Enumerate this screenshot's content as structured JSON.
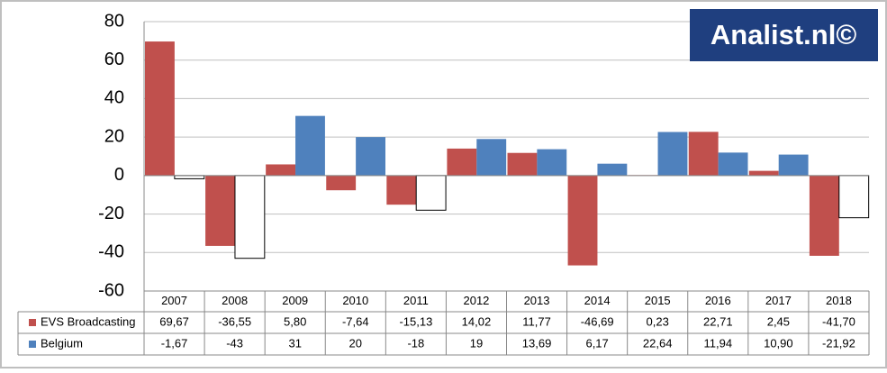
{
  "chart_data": {
    "type": "bar",
    "watermark": "Analist.nl©",
    "categories": [
      "2007",
      "2008",
      "2009",
      "2010",
      "2011",
      "2012",
      "2013",
      "2014",
      "2015",
      "2016",
      "2017",
      "2018"
    ],
    "series": [
      {
        "name": "EVS Broadcasting",
        "color": "#c0504d",
        "values": [
          69.67,
          -36.55,
          5.8,
          -7.64,
          -15.13,
          14.02,
          11.77,
          -46.69,
          0.23,
          22.71,
          2.45,
          -41.7
        ],
        "value_labels": [
          "69,67",
          "-36,55",
          "5,80",
          "-7,64",
          "-15,13",
          "14,02",
          "11,77",
          "-46,69",
          "0,23",
          "22,71",
          "2,45",
          "-41,70"
        ]
      },
      {
        "name": "Belgium",
        "color": "#4f81bd",
        "negative_color": "#ffffff",
        "values": [
          -1.67,
          -43,
          31,
          20,
          -18,
          19,
          13.69,
          6.17,
          22.64,
          11.94,
          10.9,
          -21.92
        ],
        "value_labels": [
          "-1,67",
          "-43",
          "31",
          "20",
          "-18",
          "19",
          "13,69",
          "6,17",
          "22,64",
          "11,94",
          "10,90",
          "-21,92"
        ]
      }
    ],
    "ylim": [
      -60,
      80
    ],
    "yticks": [
      -60,
      -40,
      -20,
      0,
      20,
      40,
      60,
      80
    ],
    "grid": true,
    "data_table": true
  }
}
